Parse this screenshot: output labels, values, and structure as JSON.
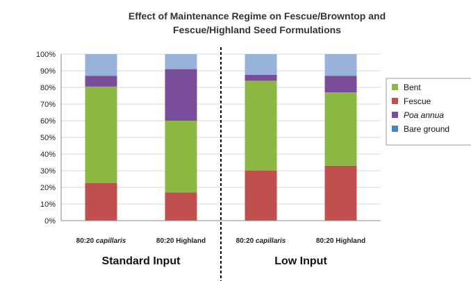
{
  "chart_data": {
    "type": "bar",
    "stacked": true,
    "title_lines": [
      "Effect of Maintenance Regime on Fescue/Browntop and",
      "Fescue/Highland Seed Formulations"
    ],
    "ylim": [
      0,
      100
    ],
    "y_tick_labels": [
      "0%",
      "10%",
      "20%",
      "30%",
      "40%",
      "50%",
      "60%",
      "70%",
      "80%",
      "90%",
      "100%"
    ],
    "grid": true,
    "legend_position": "right",
    "categories": [
      {
        "prefix": "80:20 ",
        "emph": "capillaris",
        "suffix": ""
      },
      {
        "prefix": "80:20 Highland",
        "emph": "",
        "suffix": ""
      },
      {
        "prefix": "80:20 ",
        "emph": "capillaris",
        "suffix": ""
      },
      {
        "prefix": "80:20 Highland",
        "emph": "",
        "suffix": ""
      }
    ],
    "groups": [
      {
        "label": "Standard Input",
        "categories": [
          0,
          1
        ]
      },
      {
        "label": "Low Input",
        "categories": [
          2,
          3
        ]
      }
    ],
    "series": [
      {
        "name": "Fescue",
        "color": "#c0504d",
        "values": [
          22.5,
          17,
          30,
          33
        ]
      },
      {
        "name": "Bent",
        "color": "#8db843",
        "values": [
          58,
          43,
          54,
          44
        ]
      },
      {
        "name": "Poa annua",
        "color": "#7a4d9b",
        "values": [
          6.5,
          31,
          3.5,
          10
        ]
      },
      {
        "name": "Bare ground",
        "color": "#4f81bd",
        "values": [
          0,
          0,
          0,
          0
        ]
      },
      {
        "name": "",
        "color": "#98b3d9",
        "values": [
          13,
          9,
          12.5,
          13
        ]
      }
    ],
    "legend": [
      {
        "name": "Bent",
        "color": "#8db843",
        "italic": false
      },
      {
        "name": "Fescue",
        "color": "#c0504d",
        "italic": false
      },
      {
        "name": "Poa annua",
        "color": "#7a4d9b",
        "italic": true
      },
      {
        "name": "Bare ground",
        "color": "#4f81bd",
        "italic": false
      }
    ]
  }
}
